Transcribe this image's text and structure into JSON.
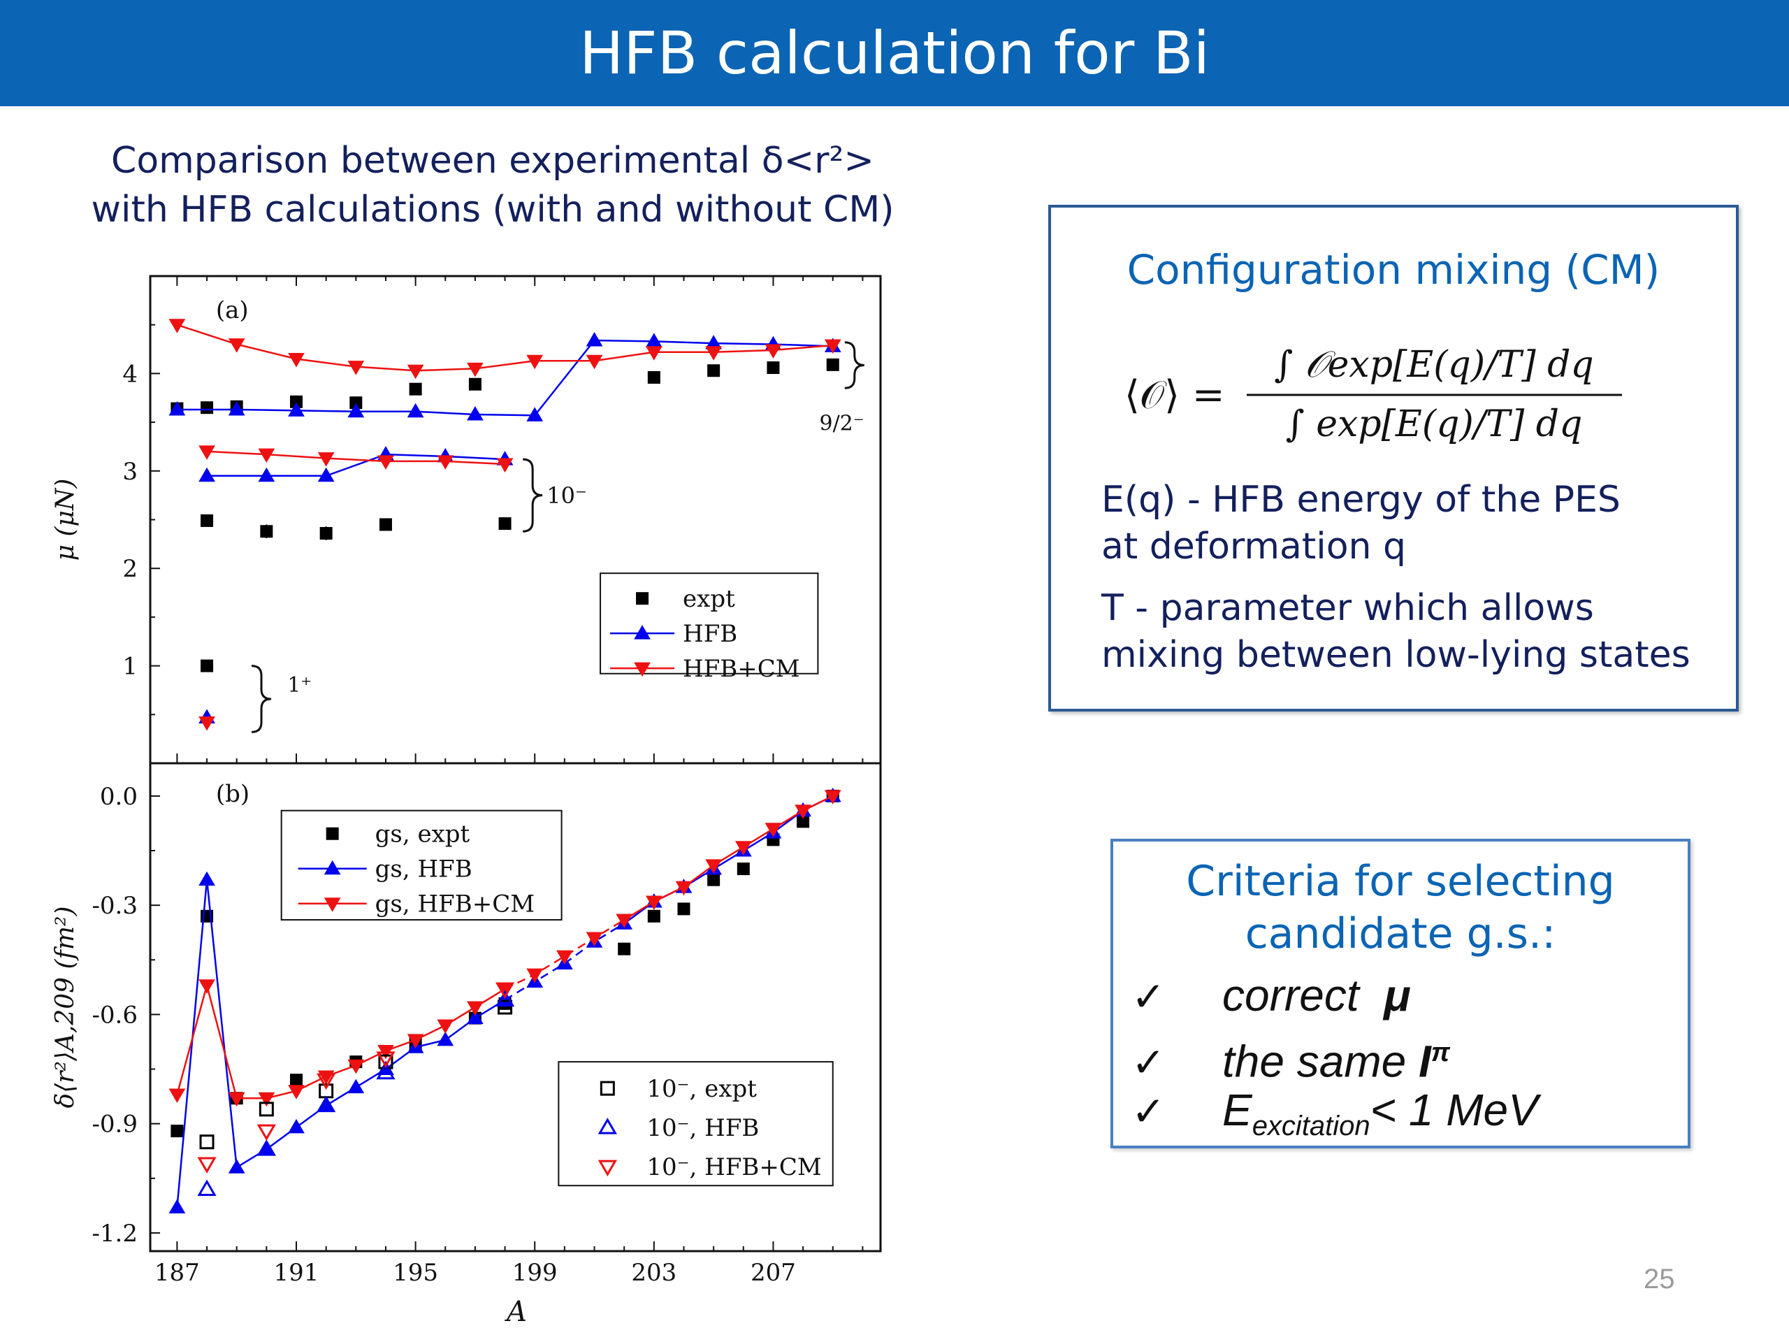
{
  "slide": {
    "title": "HFB calculation for Bi",
    "subtitle_line1": "Comparison between experimental δ<r²>",
    "subtitle_line2": "with HFB calculations (with and without CM)",
    "page_number": "25"
  },
  "cm_box": {
    "title": "Configuration mixing (CM)",
    "formula_lhs": "⟨𝒪⟩ =",
    "formula_num": "∫ 𝒪exp[E(q)/T] dq",
    "formula_den": "∫ exp[E(q)/T] dq",
    "line1": "E(q) - HFB energy of the PES",
    "line2": "at deformation q",
    "line3": "T - parameter which allows",
    "line4": "mixing between low-lying states"
  },
  "criteria_box": {
    "title_line1": "Criteria for selecting",
    "title_line2": "candidate g.s.:",
    "check": "✓",
    "item1_text": "correct",
    "item1_symbol": "μ",
    "item2_text": "the same",
    "item2_symbol": "I",
    "item2_sup": "π",
    "item3_main": "E",
    "item3_sub": "excitation",
    "item3_rest": "< 1 MeV"
  },
  "colors": {
    "expt": "#000000",
    "hfb": "#0000ee",
    "cm": "#ee1111",
    "title_bar": "#0b64b4"
  },
  "chart_data": [
    {
      "type": "scatter",
      "panel_label": "(a)",
      "ylabel": "μ (μN)",
      "ylim": [
        0,
        5.0
      ],
      "yticks": [
        1,
        2,
        3,
        4
      ],
      "xlim": [
        186.1,
        210.6
      ],
      "legend_position": "bottom-right",
      "legend": [
        "expt",
        "HFB",
        "HFB+CM"
      ],
      "group_labels": [
        "9/2⁻",
        "10⁻",
        "1⁺"
      ],
      "series": [
        {
          "name": "expt",
          "group": "9/2-",
          "marker": "square",
          "x": [
            187,
            188,
            189,
            191,
            193,
            195,
            197,
            203,
            205,
            207,
            209
          ],
          "y": [
            3.64,
            3.65,
            3.66,
            3.71,
            3.7,
            3.84,
            3.89,
            3.96,
            4.03,
            4.06,
            4.09
          ]
        },
        {
          "name": "HFB",
          "group": "9/2-",
          "marker": "triangle-up",
          "line": true,
          "x": [
            187,
            189,
            191,
            193,
            195,
            197,
            199,
            201,
            203,
            205,
            207,
            209
          ],
          "y": [
            3.63,
            3.63,
            3.62,
            3.61,
            3.61,
            3.58,
            3.57,
            4.34,
            4.33,
            4.31,
            4.3,
            4.28
          ]
        },
        {
          "name": "HFB+CM",
          "group": "9/2-",
          "marker": "triangle-down",
          "line": true,
          "x": [
            187,
            189,
            191,
            193,
            195,
            197,
            199,
            201,
            203,
            205,
            207,
            209
          ],
          "y": [
            4.5,
            4.3,
            4.15,
            4.07,
            4.03,
            4.05,
            4.13,
            4.13,
            4.22,
            4.22,
            4.24,
            4.29
          ]
        },
        {
          "name": "expt",
          "group": "10-",
          "marker": "square",
          "x": [
            188,
            190,
            192,
            194,
            198
          ],
          "y": [
            2.49,
            2.38,
            2.36,
            2.45,
            2.46
          ],
          "yerr": [
            0.02,
            0.07,
            0.07,
            0.06,
            0.02
          ]
        },
        {
          "name": "HFB",
          "group": "10-",
          "marker": "triangle-up",
          "line": true,
          "x": [
            188,
            190,
            192,
            194,
            196,
            198
          ],
          "y": [
            2.95,
            2.95,
            2.95,
            3.17,
            3.15,
            3.12
          ]
        },
        {
          "name": "HFB+CM",
          "group": "10-",
          "marker": "triangle-down",
          "line": true,
          "x": [
            188,
            190,
            192,
            194,
            196,
            198
          ],
          "y": [
            3.2,
            3.17,
            3.13,
            3.1,
            3.1,
            3.07
          ]
        },
        {
          "name": "expt",
          "group": "1+",
          "marker": "square",
          "x": [
            188
          ],
          "y": [
            1.0
          ]
        },
        {
          "name": "HFB",
          "group": "1+",
          "marker": "triangle-up",
          "x": [
            188
          ],
          "y": [
            0.47
          ]
        },
        {
          "name": "HFB+CM",
          "group": "1+",
          "marker": "triangle-down",
          "x": [
            188
          ],
          "y": [
            0.42
          ]
        }
      ]
    },
    {
      "type": "line",
      "panel_label": "(b)",
      "xlabel": "A",
      "ylabel": "δ⟨r²⟩A,209 (fm²)",
      "ylim": [
        -1.25,
        0.09
      ],
      "yticks": [
        0.0,
        -0.3,
        -0.6,
        -0.9,
        -1.2
      ],
      "ytick_labels": [
        "0.0",
        "-0.3",
        "-0.6",
        "-0.9",
        "-1.2"
      ],
      "xlim": [
        186.1,
        210.6
      ],
      "xticks": [
        187,
        191,
        195,
        199,
        203,
        207
      ],
      "legend_top": [
        "gs, expt",
        "gs, HFB",
        "gs, HFB+CM"
      ],
      "legend_bottom": [
        "10⁻, expt",
        "10⁻, HFB",
        "10⁻, HFB+CM"
      ],
      "series": [
        {
          "name": "gs, expt",
          "marker": "square",
          "x": [
            187,
            188,
            189,
            191,
            193,
            195,
            197,
            198,
            202,
            203,
            204,
            205,
            206,
            207,
            208,
            209
          ],
          "y": [
            -0.92,
            -0.33,
            -0.83,
            -0.78,
            -0.73,
            -0.68,
            -0.61,
            -0.57,
            -0.42,
            -0.33,
            -0.31,
            -0.23,
            -0.2,
            -0.12,
            -0.07,
            0.0
          ]
        },
        {
          "name": "gs, HFB",
          "marker": "triangle-up",
          "line": true,
          "x": [
            187,
            188,
            189,
            190,
            191,
            192,
            193,
            194,
            195,
            196,
            197,
            198,
            199,
            200,
            201,
            202,
            203,
            204,
            205,
            206,
            207,
            208,
            209
          ],
          "y": [
            -1.13,
            -0.23,
            -1.02,
            -0.97,
            -0.91,
            -0.85,
            -0.8,
            -0.75,
            -0.69,
            -0.67,
            -0.61,
            -0.56,
            -0.51,
            -0.46,
            -0.4,
            -0.35,
            -0.29,
            -0.25,
            -0.2,
            -0.15,
            -0.1,
            -0.04,
            0.0
          ]
        },
        {
          "name": "gs, HFB+CM",
          "marker": "triangle-down",
          "line": true,
          "x": [
            187,
            188,
            189,
            190,
            191,
            192,
            193,
            194,
            195,
            196,
            197,
            198,
            199,
            200,
            201,
            202,
            203,
            204,
            205,
            206,
            207,
            208,
            209
          ],
          "y": [
            -0.82,
            -0.52,
            -0.83,
            -0.83,
            -0.81,
            -0.77,
            -0.74,
            -0.7,
            -0.67,
            -0.63,
            -0.58,
            -0.53,
            -0.49,
            -0.44,
            -0.39,
            -0.34,
            -0.29,
            -0.25,
            -0.19,
            -0.14,
            -0.09,
            -0.04,
            0.0
          ]
        },
        {
          "name": "10⁻, expt",
          "marker": "square-open",
          "x": [
            188,
            190,
            192,
            194,
            198
          ],
          "y": [
            -0.95,
            -0.86,
            -0.81,
            -0.73,
            -0.58
          ]
        },
        {
          "name": "10⁻, HFB",
          "marker": "triangle-up-open",
          "x": [
            188,
            190,
            192,
            194,
            198
          ],
          "y": [
            -1.08,
            -0.97,
            -0.85,
            -0.76,
            -0.56
          ]
        },
        {
          "name": "10⁻, HFB+CM",
          "marker": "triangle-down-open",
          "x": [
            188,
            190,
            192,
            194,
            198
          ],
          "y": [
            -1.01,
            -0.92,
            -0.78,
            -0.72,
            -0.53
          ]
        }
      ]
    }
  ]
}
